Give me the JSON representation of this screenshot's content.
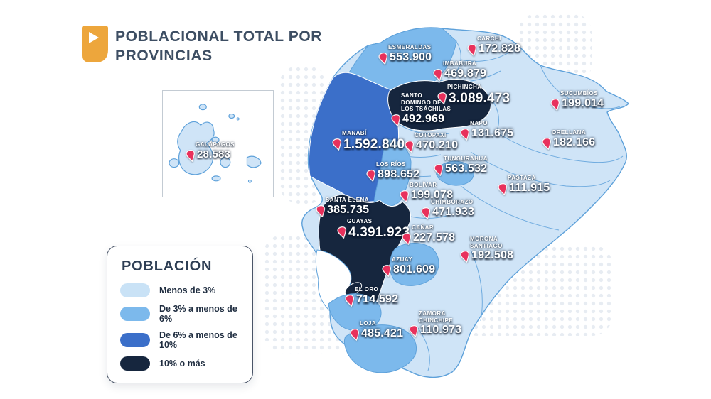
{
  "header": {
    "title_line1": "POBLACIONAL TOTAL POR",
    "title_line2": "PROVINCIAS",
    "icon": "shield-play-icon"
  },
  "legend": {
    "title": "POBLACIÓN",
    "items": [
      {
        "label": "Menos de 3%",
        "color": "#c9e2f6"
      },
      {
        "label": "De 3% a menos de 6%",
        "color": "#7cb9ec"
      },
      {
        "label": "De 6% a menos de 10%",
        "color": "#3b6fc9"
      },
      {
        "label": "10% o más",
        "color": "#16263e"
      }
    ]
  },
  "inset": {
    "name": "GALÁPAGOS",
    "value": "28.583"
  },
  "provinces": [
    {
      "name": "ESMERALDAS",
      "value": "553.900"
    },
    {
      "name": "CARCHI",
      "value": "172.828"
    },
    {
      "name": "IMBABURA",
      "value": "469.879"
    },
    {
      "name": "PICHINCHA",
      "value": "3.089.473"
    },
    {
      "name": "SANTO\nDOMINGO DE\nLOS TSÁCHILAS",
      "value": "492.969"
    },
    {
      "name": "SUCUMBÍOS",
      "value": "199.014"
    },
    {
      "name": "NAPO",
      "value": "131.675"
    },
    {
      "name": "ORELLANA",
      "value": "182.166"
    },
    {
      "name": "MANABÍ",
      "value": "1.592.840"
    },
    {
      "name": "COTOPAXI",
      "value": "470.210"
    },
    {
      "name": "TUNGURAHUA",
      "value": "563.532"
    },
    {
      "name": "LOS RÍOS",
      "value": "898.652"
    },
    {
      "name": "BOLÍVAR",
      "value": "199.078"
    },
    {
      "name": "PASTAZA",
      "value": "111.915"
    },
    {
      "name": "CHIMBORAZO",
      "value": "471.933"
    },
    {
      "name": "SANTA ELENA",
      "value": "385.735"
    },
    {
      "name": "GUAYAS",
      "value": "4.391.923"
    },
    {
      "name": "CAÑAR",
      "value": "227.578"
    },
    {
      "name": "MORONA\nSANTIAGO",
      "value": "192.508"
    },
    {
      "name": "AZUAY",
      "value": "801.609"
    },
    {
      "name": "EL ORO",
      "value": "714.592"
    },
    {
      "name": "LOJA",
      "value": "485.421"
    },
    {
      "name": "ZAMORA\nCHINCHIPE",
      "value": "110.973"
    }
  ],
  "colors": {
    "accent_orange": "#eda63c",
    "title_text": "#3d4e63",
    "map_light": "#cfe4f7",
    "map_medium": "#7cb9ec",
    "map_royal": "#3b6fc9",
    "map_navy": "#16263e",
    "map_stroke": "#5ea1da",
    "pin": "#e8315c",
    "dots": "#e7ecf2"
  }
}
